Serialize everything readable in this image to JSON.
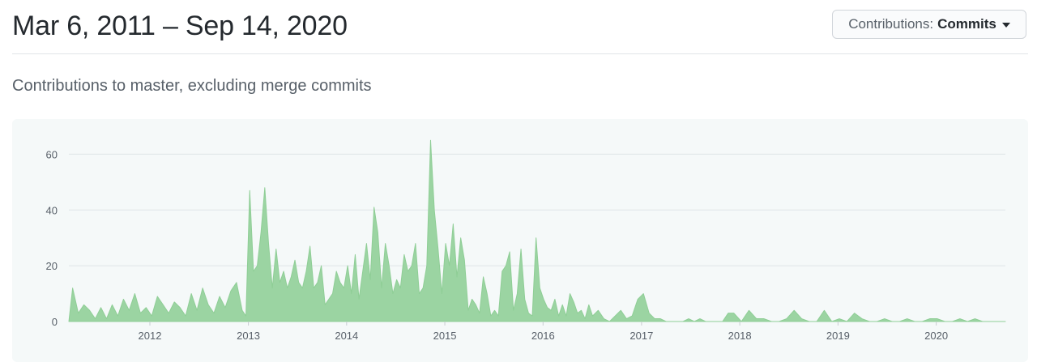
{
  "header": {
    "date_range": "Mar 6, 2011 – Sep 14, 2020",
    "contributions_label": "Contributions:",
    "contributions_value": "Commits"
  },
  "subtitle": "Contributions to master, excluding merge commits",
  "colors": {
    "area_fill": "#9bd4a2",
    "area_stroke": "#8fce96",
    "grid": "#dfe5e7",
    "panel_bg": "#f5f9f9"
  },
  "chart_data": {
    "type": "area",
    "title": "",
    "xlabel": "",
    "ylabel": "",
    "xlim": [
      "2011-03-06",
      "2020-09-14"
    ],
    "ylim": [
      0,
      70
    ],
    "grid": "horizontal",
    "yticks": [
      0,
      20,
      40,
      60
    ],
    "xticks": [
      {
        "date": "2012-01-01",
        "label": "2012"
      },
      {
        "date": "2013-01-01",
        "label": "2013"
      },
      {
        "date": "2014-01-01",
        "label": "2014"
      },
      {
        "date": "2015-01-01",
        "label": "2015"
      },
      {
        "date": "2016-01-01",
        "label": "2016"
      },
      {
        "date": "2017-01-01",
        "label": "2017"
      },
      {
        "date": "2018-01-01",
        "label": "2018"
      },
      {
        "date": "2019-01-01",
        "label": "2019"
      },
      {
        "date": "2020-01-01",
        "label": "2020"
      }
    ],
    "series": [
      {
        "x": [
          "2011-03-06",
          "2011-03-20",
          "2011-04-10",
          "2011-05-01",
          "2011-05-22",
          "2011-06-12",
          "2011-07-03",
          "2011-07-24",
          "2011-08-14",
          "2011-09-04",
          "2011-09-25",
          "2011-10-16",
          "2011-11-06",
          "2011-11-27",
          "2011-12-18",
          "2012-01-08",
          "2012-01-29",
          "2012-02-19",
          "2012-03-11",
          "2012-04-01",
          "2012-04-22",
          "2012-05-13",
          "2012-06-03",
          "2012-06-24",
          "2012-07-15",
          "2012-08-05",
          "2012-08-26",
          "2012-09-16",
          "2012-10-07",
          "2012-10-28",
          "2012-11-18",
          "2012-12-09",
          "2012-12-23",
          "2013-01-06",
          "2013-01-20",
          "2013-02-03",
          "2013-02-17",
          "2013-03-03",
          "2013-03-17",
          "2013-03-31",
          "2013-04-14",
          "2013-04-28",
          "2013-05-12",
          "2013-05-26",
          "2013-06-09",
          "2013-06-23",
          "2013-07-07",
          "2013-07-21",
          "2013-08-04",
          "2013-08-18",
          "2013-09-01",
          "2013-09-15",
          "2013-09-29",
          "2013-10-13",
          "2013-10-27",
          "2013-11-10",
          "2013-11-24",
          "2013-12-08",
          "2013-12-22",
          "2014-01-05",
          "2014-01-19",
          "2014-02-02",
          "2014-02-16",
          "2014-03-02",
          "2014-03-16",
          "2014-03-30",
          "2014-04-13",
          "2014-04-27",
          "2014-05-11",
          "2014-05-25",
          "2014-06-08",
          "2014-06-22",
          "2014-07-06",
          "2014-07-20",
          "2014-08-03",
          "2014-08-17",
          "2014-08-31",
          "2014-09-14",
          "2014-09-28",
          "2014-10-12",
          "2014-10-26",
          "2014-11-09",
          "2014-11-23",
          "2014-12-07",
          "2014-12-21",
          "2015-01-04",
          "2015-01-18",
          "2015-02-01",
          "2015-02-15",
          "2015-03-01",
          "2015-03-15",
          "2015-03-29",
          "2015-04-12",
          "2015-04-26",
          "2015-05-10",
          "2015-05-24",
          "2015-06-07",
          "2015-06-21",
          "2015-07-05",
          "2015-07-19",
          "2015-08-02",
          "2015-08-16",
          "2015-08-30",
          "2015-09-13",
          "2015-09-27",
          "2015-10-11",
          "2015-10-25",
          "2015-11-08",
          "2015-11-22",
          "2015-12-06",
          "2015-12-20",
          "2016-01-03",
          "2016-01-17",
          "2016-01-31",
          "2016-02-14",
          "2016-02-28",
          "2016-03-13",
          "2016-03-27",
          "2016-04-10",
          "2016-04-24",
          "2016-05-08",
          "2016-05-22",
          "2016-06-05",
          "2016-06-19",
          "2016-07-03",
          "2016-07-24",
          "2016-08-14",
          "2016-09-04",
          "2016-09-25",
          "2016-10-16",
          "2016-11-06",
          "2016-11-27",
          "2016-12-18",
          "2017-01-08",
          "2017-01-29",
          "2017-02-19",
          "2017-03-12",
          "2017-04-02",
          "2017-04-23",
          "2017-05-14",
          "2017-06-04",
          "2017-06-25",
          "2017-07-16",
          "2017-08-06",
          "2017-08-27",
          "2017-09-17",
          "2017-10-08",
          "2017-10-29",
          "2017-11-19",
          "2017-12-10",
          "2018-01-07",
          "2018-02-04",
          "2018-03-04",
          "2018-04-01",
          "2018-04-29",
          "2018-05-27",
          "2018-06-24",
          "2018-07-22",
          "2018-08-19",
          "2018-09-16",
          "2018-10-14",
          "2018-11-11",
          "2018-12-09",
          "2019-01-06",
          "2019-02-03",
          "2019-03-03",
          "2019-03-31",
          "2019-04-28",
          "2019-05-26",
          "2019-06-23",
          "2019-07-21",
          "2019-08-18",
          "2019-09-15",
          "2019-10-13",
          "2019-11-10",
          "2019-12-08",
          "2020-01-05",
          "2020-02-02",
          "2020-03-01",
          "2020-03-29",
          "2020-04-26",
          "2020-05-24",
          "2020-06-21",
          "2020-07-19",
          "2020-08-16",
          "2020-09-14"
        ],
        "y": [
          0,
          12,
          3,
          6,
          4,
          1,
          5,
          1,
          6,
          2,
          8,
          4,
          10,
          3,
          5,
          2,
          9,
          6,
          3,
          7,
          5,
          2,
          10,
          4,
          12,
          6,
          3,
          9,
          5,
          11,
          14,
          4,
          2,
          47,
          18,
          20,
          32,
          48,
          28,
          12,
          26,
          14,
          18,
          12,
          16,
          22,
          14,
          12,
          18,
          27,
          12,
          14,
          20,
          6,
          8,
          10,
          18,
          14,
          12,
          20,
          10,
          24,
          8,
          18,
          28,
          15,
          41,
          32,
          12,
          28,
          20,
          10,
          15,
          12,
          24,
          18,
          20,
          28,
          10,
          12,
          20,
          65,
          40,
          26,
          10,
          28,
          20,
          35,
          16,
          30,
          22,
          4,
          8,
          6,
          3,
          16,
          10,
          2,
          4,
          2,
          18,
          20,
          25,
          4,
          10,
          26,
          8,
          3,
          2,
          30,
          12,
          8,
          5,
          4,
          8,
          2,
          6,
          2,
          10,
          7,
          3,
          4,
          1,
          6,
          2,
          4,
          1,
          0,
          2,
          4,
          1,
          2,
          8,
          10,
          3,
          1,
          1,
          0,
          0,
          0,
          0,
          1,
          0,
          1,
          0,
          0,
          0,
          0,
          3,
          3,
          0,
          4,
          1,
          1,
          0,
          0,
          1,
          4,
          1,
          0,
          0,
          4,
          0,
          1,
          0,
          3,
          1,
          0,
          0,
          1,
          0,
          0,
          1,
          0,
          0,
          1,
          1,
          0,
          0,
          1,
          0,
          1,
          0,
          0,
          0,
          0
        ]
      }
    ]
  }
}
